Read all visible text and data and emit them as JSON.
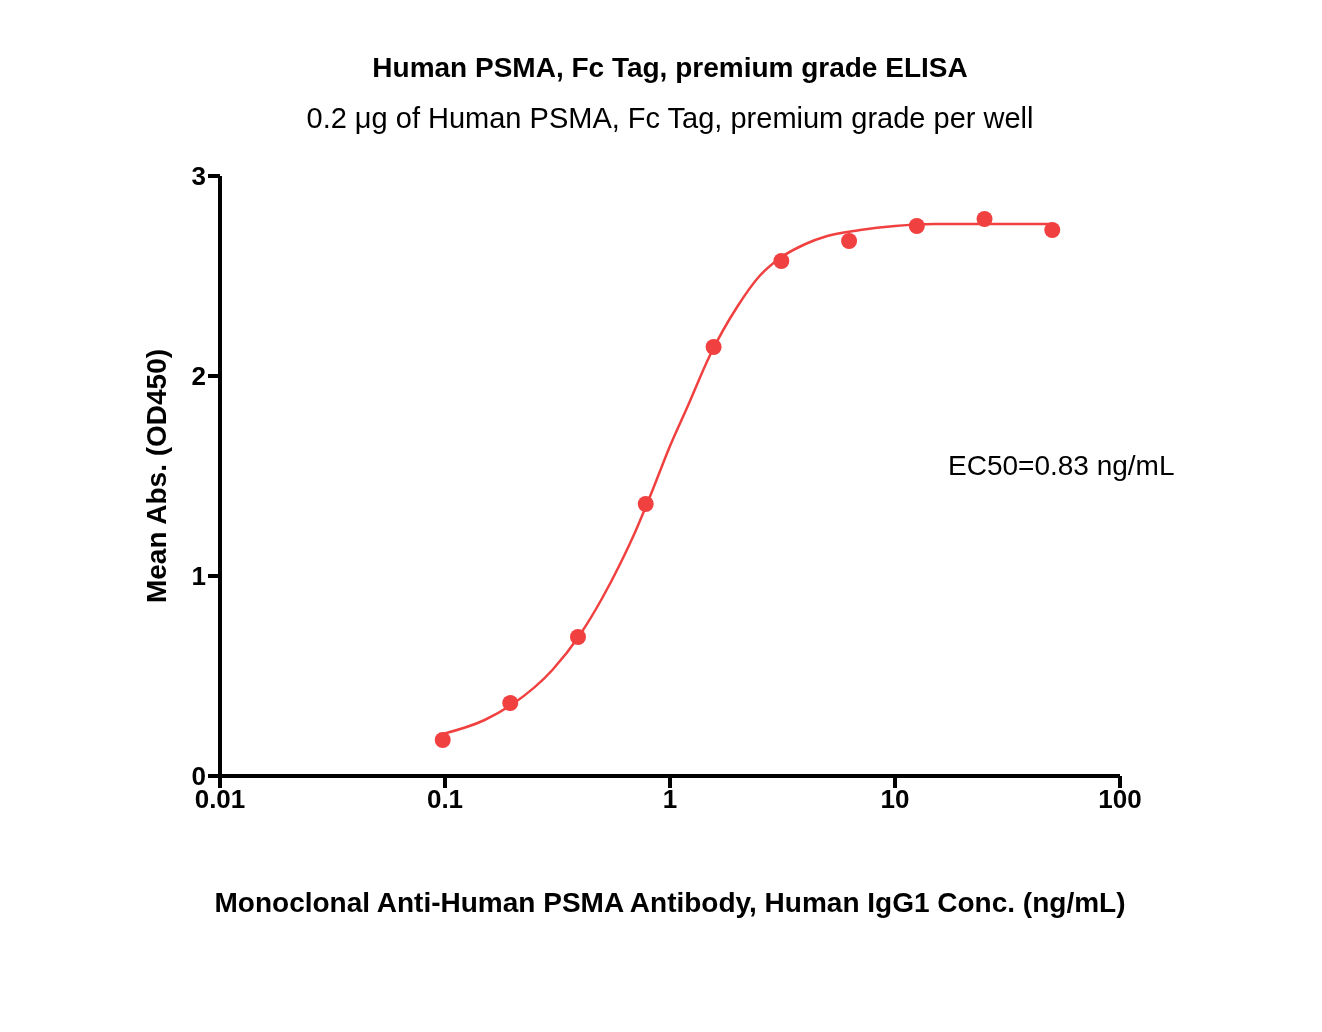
{
  "chart_data": {
    "type": "scatter",
    "title": "Human PSMA, Fc Tag, premium grade ELISA",
    "subtitle": "0.2 μg of Human PSMA, Fc Tag, premium grade per well",
    "xlabel": "Monoclonal Anti-Human PSMA Antibody, Human IgG1 Conc. (ng/mL)",
    "ylabel": "Mean Abs. (OD450)",
    "annotations": [
      "EC50=0.83 ng/mL"
    ],
    "log": "x",
    "xlim": [
      0.01,
      100
    ],
    "xticks": [
      0.01,
      0.1,
      1,
      10,
      100
    ],
    "ylim": [
      0,
      3
    ],
    "yticks": [
      0,
      1,
      2,
      3
    ],
    "grid": false,
    "legend": false,
    "marker": "circle",
    "series": [
      {
        "color": "#f04040",
        "x": [
          0.0977,
          0.195,
          0.39,
          0.78,
          1.5625,
          3.125,
          6.25,
          12.5,
          25,
          50
        ],
        "values": [
          0.18,
          0.365,
          0.695,
          1.36,
          2.145,
          2.575,
          2.675,
          2.75,
          2.785,
          2.73
        ]
      },
      {
        "type": "line",
        "color": "#f04040",
        "marker": "none",
        "line_style": "solid",
        "x": [
          0.0977,
          0.15,
          0.2,
          0.3,
          0.4,
          0.5,
          0.6,
          0.7,
          0.83,
          1,
          1.2,
          1.5,
          2,
          2.5,
          3,
          4,
          5,
          7,
          10,
          15,
          20,
          30,
          50
        ],
        "values": [
          0.21,
          0.28,
          0.36,
          0.53,
          0.71,
          0.89,
          1.06,
          1.22,
          1.42,
          1.65,
          1.85,
          2.1,
          2.35,
          2.5,
          2.58,
          2.66,
          2.7,
          2.73,
          2.75,
          2.76,
          2.76,
          2.76,
          2.76
        ]
      }
    ]
  }
}
